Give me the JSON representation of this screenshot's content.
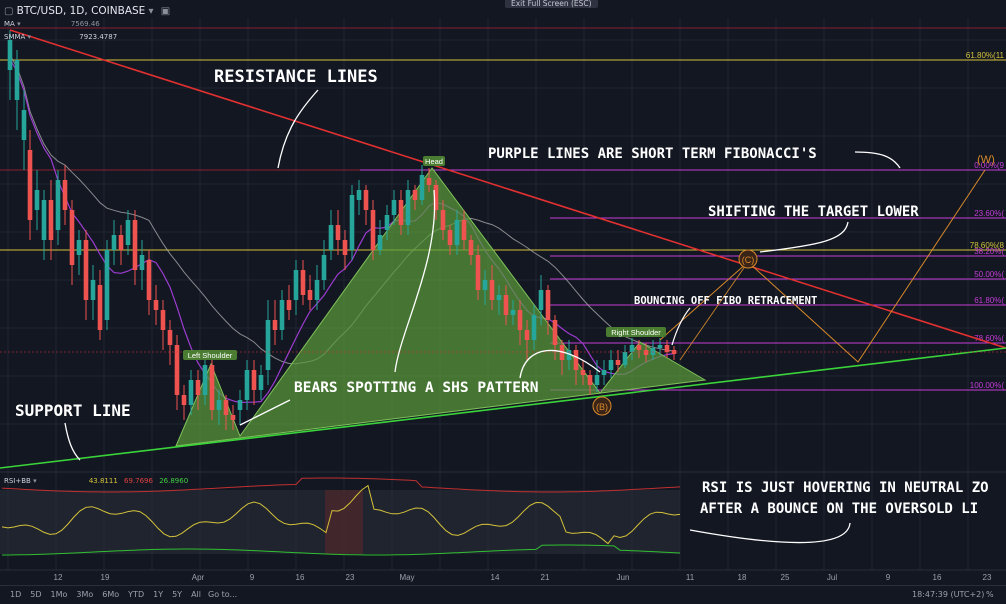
{
  "header": {
    "symbol": "BTC/USD, 1D, COINBASE",
    "exit_fullscreen": "Exit Full Screen (ESC)",
    "ma_label": "MA",
    "smma_label": "SMMA",
    "ma_value": "7569.46",
    "smma_value": "7923.4787"
  },
  "rsi": {
    "label": "RSI+BB",
    "values": [
      "43.8111",
      "69.7696",
      "26.8960"
    ]
  },
  "annotations": {
    "resistance": "RESISTANCE LINES",
    "purple": "PURPLE LINES ARE SHORT TERM FIBONACCI'S",
    "shifting": "SHIFTING THE TARGET LOWER",
    "bouncing": "BOUNCING OFF FIBO RETRACEMENT",
    "bears": "BEARS SPOTTING A SHS PATTERN",
    "support": "SUPPORT LINE",
    "rsi_line1": "RSI IS JUST HOVERING IN NEUTRAL ZO",
    "rsi_line2": "AFTER A BOUNCE ON THE OVERSOLD LI",
    "left_shoulder": "Left Shoulder",
    "head": "Head",
    "right_shoulder": "Right Shoulder",
    "wave_w": "(W)",
    "wave_c": "(C)",
    "wave_b": "(B)"
  },
  "chart_data": {
    "type": "candlestick",
    "title": "BTC/USD, 1D, COINBASE",
    "x_ticks": [
      "12",
      "19",
      "Apr",
      "9",
      "16",
      "23",
      "May",
      "14",
      "21",
      "Jun",
      "11",
      "18",
      "25",
      "Jul",
      "9",
      "16",
      "23"
    ],
    "fib_levels": [
      {
        "label": "61.80%(11",
        "color": "#d4c23a"
      },
      {
        "label": "0.00%(9",
        "color": "#c43cd8"
      },
      {
        "label": "23.60%(",
        "color": "#c43cd8"
      },
      {
        "label": "78.60%(8",
        "color": "#d4c23a"
      },
      {
        "label": "38.20%(",
        "color": "#c43cd8"
      },
      {
        "label": "50.00%(",
        "color": "#c43cd8"
      },
      {
        "label": "61.80%(",
        "color": "#c43cd8"
      },
      {
        "label": "78.60%(",
        "color": "#c43cd8"
      },
      {
        "label": "100.00%(",
        "color": "#c43cd8"
      }
    ],
    "colors": {
      "up": "#26a69a",
      "down": "#ef5350",
      "resistance": "#e03030",
      "support": "#3ad43a",
      "pattern": "#6fae4a",
      "wave": "#d88a2a"
    }
  },
  "bottom_toolbar": {
    "ranges": [
      "1D",
      "5D",
      "1Mo",
      "3Mo",
      "6Mo",
      "YTD",
      "1Y",
      "5Y",
      "All"
    ],
    "goto": "Go to...",
    "clock": "18:47:39 (UTC+2)",
    "percent": "%"
  }
}
